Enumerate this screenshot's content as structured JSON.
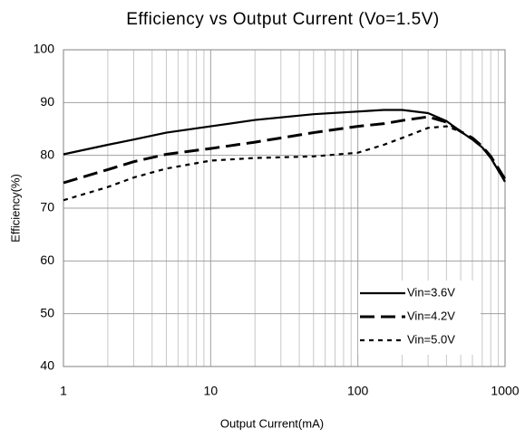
{
  "chart_data": {
    "type": "line",
    "title": "Efficiency vs Output Current (Vo=1.5V)",
    "xlabel": "Output Current(mA)",
    "ylabel": "Efficiency(%)",
    "x": [
      1,
      2,
      3,
      5,
      10,
      20,
      50,
      100,
      150,
      200,
      300,
      400,
      500,
      600,
      700,
      800,
      1000
    ],
    "series": [
      {
        "name": "Vin=3.6V",
        "color": "#000000",
        "linestyle": "solid",
        "values": [
          80.2,
          82,
          83,
          84.3,
          85.5,
          86.7,
          87.8,
          88.3,
          88.6,
          88.6,
          88,
          86.5,
          84.5,
          83,
          81.5,
          79.5,
          75
        ]
      },
      {
        "name": "Vin=4.2V",
        "color": "#000000",
        "linestyle": "dashed",
        "values": [
          74.8,
          77.3,
          78.8,
          80.2,
          81.3,
          82.5,
          84.3,
          85.5,
          86,
          86.6,
          87.3,
          86.3,
          84.5,
          83.3,
          81.7,
          79.8,
          75.5
        ]
      },
      {
        "name": "Vin=5.0V",
        "color": "#000000",
        "linestyle": "dotted",
        "values": [
          71.5,
          74,
          75.8,
          77.5,
          79,
          79.5,
          79.8,
          80.5,
          82,
          83.3,
          85.2,
          85.5,
          84.5,
          83,
          81.5,
          79.5,
          75
        ]
      }
    ],
    "xscale": "log",
    "xlim": [
      1,
      1000
    ],
    "xticks": [
      1,
      10,
      100,
      1000
    ],
    "xminorticks": [
      2,
      3,
      4,
      5,
      6,
      7,
      8,
      9,
      20,
      30,
      40,
      50,
      60,
      70,
      80,
      90,
      200,
      300,
      400,
      500,
      600,
      700,
      800,
      900
    ],
    "ylim": [
      40,
      100
    ],
    "yticks": [
      40,
      50,
      60,
      70,
      80,
      90,
      100
    ],
    "grid": true,
    "legend": "lower right"
  }
}
